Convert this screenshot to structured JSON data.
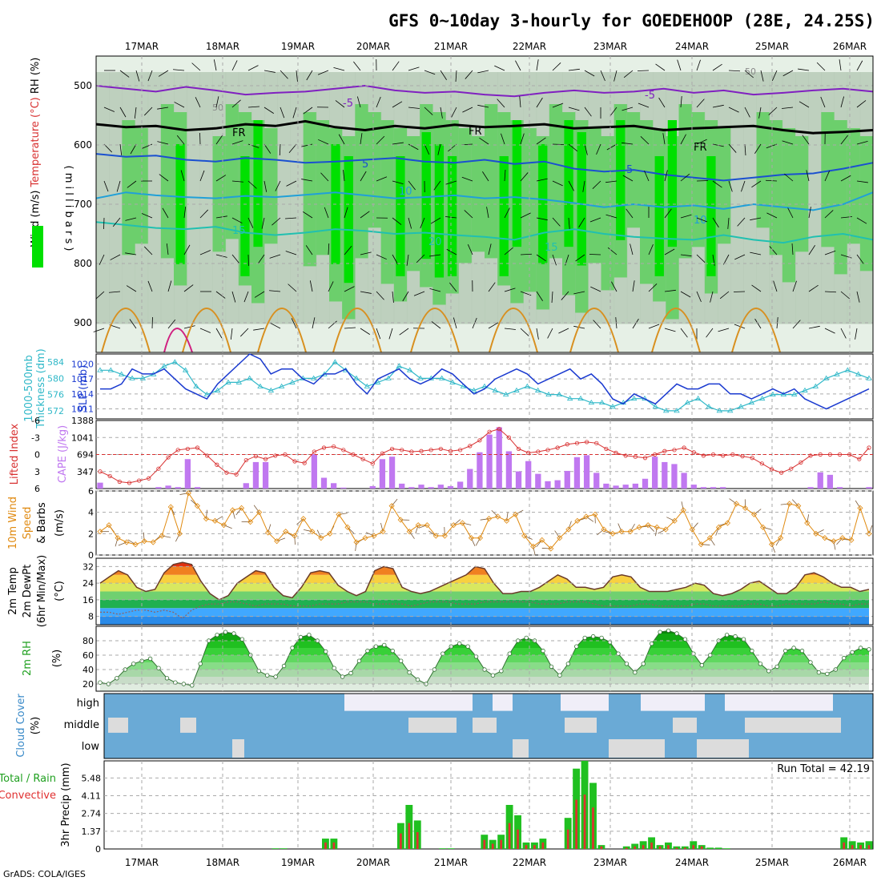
{
  "title": "GFS 0~10day 3-hourly for GOEDEHOOP (28E, 24.25S)",
  "footer": "GrADS: COLA/IGES",
  "dates": [
    "17MAR",
    "18MAR",
    "19MAR",
    "20MAR",
    "21MAR",
    "22MAR",
    "23MAR",
    "24MAR",
    "25MAR",
    "26MAR"
  ],
  "colors": {
    "rh_dark": "#00e000",
    "rh_mid": "#6ccf6c",
    "rh_light": "#b4c8b4",
    "cloud": "#6aaad6",
    "cloud_clear": "#f0eef8",
    "thick": "#2fb8c8",
    "slp": "#1a3ad0",
    "cape": "#c078f0",
    "lifted": "#d83030",
    "wind": "#e08a10",
    "rain_total": "#20c020",
    "rain_conv": "#e03030"
  },
  "chart_data": [
    {
      "type": "heatmap",
      "name": "upper_air",
      "ylabel_parts": [
        "Wind (m/s)",
        "Temperature (°C)",
        "RH (%)"
      ],
      "ylabel_unit": "( m i l l i b a r s )",
      "ylim": [
        450,
        950
      ],
      "yticks": [
        500,
        600,
        700,
        800,
        900
      ],
      "contour_labels": {
        "temp_minus5": "-5",
        "freezing": "FR",
        "temp5": "5",
        "temp10": "10",
        "temp15": "15",
        "temp20": "20",
        "rh50": "50"
      },
      "isotherms": {
        "freezing_line": [
          565,
          570,
          568,
          575,
          572,
          565,
          568,
          560,
          570,
          575,
          568,
          572,
          566,
          570,
          568,
          565,
          572,
          570,
          568,
          575,
          572,
          570,
          568,
          575,
          580,
          578,
          575
        ],
        "minus5_line": [
          500,
          505,
          510,
          502,
          508,
          515,
          512,
          510,
          505,
          500,
          508,
          512,
          510,
          515,
          518,
          512,
          508,
          512,
          510,
          505,
          512,
          508,
          515,
          512,
          508,
          505,
          510
        ],
        "plus5_line": [
          615,
          620,
          618,
          625,
          628,
          622,
          625,
          630,
          628,
          625,
          622,
          628,
          630,
          625,
          632,
          628,
          640,
          645,
          642,
          650,
          655,
          660,
          655,
          650,
          648,
          640,
          630
        ],
        "plus10_line": [
          690,
          680,
          685,
          688,
          690,
          686,
          688,
          684,
          680,
          685,
          690,
          688,
          685,
          690,
          688,
          692,
          698,
          705,
          700,
          705,
          702,
          708,
          700,
          705,
          710,
          700,
          680
        ],
        "plus15_line": [
          730,
          735,
          740,
          742,
          738,
          748,
          752,
          748,
          742,
          745,
          750,
          748,
          752,
          755,
          760,
          748,
          742,
          750,
          755,
          758,
          760,
          752,
          760,
          765,
          755,
          750,
          760
        ]
      }
    },
    {
      "type": "line",
      "name": "thickness_slp",
      "ylabel_parts": [
        "1000-500mb",
        "Thickness (dm)",
        "SLP (mb)"
      ],
      "thickness_ticks": [
        572,
        576,
        580,
        584
      ],
      "slp_ticks": [
        1011,
        1014,
        1017,
        1020
      ],
      "thickness_dm": [
        582,
        582,
        581,
        580,
        580,
        581,
        583,
        584,
        582,
        578,
        576,
        577,
        579,
        579,
        580,
        578,
        577,
        578,
        579,
        580,
        580,
        581,
        584,
        582,
        580,
        578,
        579,
        580,
        583,
        582,
        580,
        580,
        580,
        579,
        578,
        577,
        578,
        577,
        576,
        577,
        578,
        577,
        576,
        576,
        575,
        575,
        574,
        574,
        573,
        574,
        575,
        575,
        573,
        572,
        572,
        574,
        575,
        573,
        572,
        572,
        573,
        574,
        575,
        576,
        576,
        576,
        577,
        578,
        580,
        581,
        582,
        581,
        580
      ],
      "slp_mb": [
        1015,
        1015,
        1016,
        1019,
        1018,
        1018,
        1019,
        1017,
        1015,
        1014,
        1013,
        1016,
        1018,
        1020,
        1022,
        1021,
        1018,
        1019,
        1019,
        1017,
        1016,
        1018,
        1018,
        1019,
        1016,
        1014,
        1017,
        1018,
        1019,
        1017,
        1016,
        1017,
        1019,
        1018,
        1016,
        1014,
        1015,
        1017,
        1018,
        1019,
        1018,
        1016,
        1017,
        1018,
        1019,
        1017,
        1018,
        1016,
        1013,
        1012,
        1014,
        1013,
        1012,
        1014,
        1016,
        1015,
        1015,
        1016,
        1016,
        1014,
        1014,
        1013,
        1014,
        1015,
        1014,
        1015,
        1013,
        1012,
        1011,
        1012,
        1013,
        1014,
        1015
      ]
    },
    {
      "type": "bar",
      "name": "cape_li",
      "ylabel_parts": [
        "CAPE (J/kg)",
        "Lifted Index"
      ],
      "cape_ticks": [
        347,
        694,
        1041,
        1388
      ],
      "li_ticks": [
        "6",
        "3",
        "0",
        "-3",
        "-6"
      ],
      "cape_jkg": [
        120,
        0,
        0,
        0,
        0,
        0,
        30,
        60,
        30,
        600,
        30,
        0,
        0,
        0,
        0,
        110,
        540,
        540,
        0,
        0,
        0,
        0,
        700,
        220,
        110,
        20,
        0,
        0,
        50,
        600,
        650,
        100,
        30,
        80,
        30,
        80,
        50,
        140,
        400,
        740,
        1100,
        1250,
        760,
        350,
        560,
        300,
        150,
        170,
        360,
        640,
        680,
        320,
        100,
        60,
        80,
        100,
        200,
        650,
        540,
        500,
        320,
        80,
        30,
        30,
        30,
        0,
        0,
        0,
        0,
        0,
        0,
        0,
        0,
        30,
        330,
        280,
        30,
        0,
        0,
        30
      ],
      "lifted_index": [
        3,
        3.8,
        4.8,
        5.0,
        4.6,
        4.2,
        2.5,
        0.5,
        -0.8,
        -1,
        -1.2,
        0.2,
        1.8,
        3.2,
        3.5,
        1,
        0.3,
        0.8,
        0.2,
        0,
        1.2,
        1.5,
        -0.5,
        -1.2,
        -1.4,
        -0.8,
        0,
        0.8,
        1.6,
        -0.2,
        -1,
        -0.8,
        -0.5,
        -0.6,
        -0.8,
        -1,
        -0.6,
        -0.8,
        -1.5,
        -2.5,
        -4,
        -4.5,
        -3,
        -1,
        -0.3,
        -0.5,
        -0.8,
        -1.2,
        -1.8,
        -2,
        -2.2,
        -2,
        -1,
        -0.3,
        0.2,
        0.4,
        0.6,
        0,
        -0.6,
        -0.8,
        -1.2,
        -0.4,
        0.2,
        0,
        0.2,
        0,
        0.3,
        0.6,
        1.6,
        2.6,
        3.2,
        2.5,
        1.4,
        0.2,
        0,
        0,
        0,
        0,
        0.8,
        -1.2
      ]
    },
    {
      "type": "line",
      "name": "wind",
      "ylabel_parts": [
        "10m Wind",
        "Speed",
        "& Barbs",
        "(m/s)"
      ],
      "ylim": [
        0,
        6
      ],
      "yticks": [
        0,
        2,
        4,
        6
      ],
      "speed_ms": [
        2.2,
        2.8,
        1.6,
        1.2,
        1.0,
        1.3,
        1.2,
        1.8,
        4.5,
        2.0,
        5.8,
        4.6,
        3.4,
        3.2,
        2.8,
        4.2,
        4.4,
        3.1,
        4.0,
        2.1,
        1.3,
        2.2,
        1.8,
        3.4,
        2.2,
        1.6,
        2.0,
        3.8,
        2.6,
        1.2,
        1.6,
        1.8,
        2.2,
        4.6,
        3.3,
        2.2,
        2.8,
        2.8,
        1.8,
        1.8,
        2.8,
        3.0,
        1.6,
        1.6,
        3.4,
        3.6,
        3.2,
        3.8,
        1.8,
        0.8,
        1.4,
        0.6,
        1.6,
        2.4,
        3.2,
        3.6,
        3.8,
        2.4,
        2.0,
        2.2,
        2.2,
        2.6,
        2.8,
        2.6,
        2.4,
        3.2,
        4.2,
        2.4,
        1.0,
        1.6,
        2.6,
        3.0,
        4.8,
        4.4,
        3.8,
        2.6,
        1.0,
        1.6,
        4.8,
        4.6,
        3.0,
        2.0,
        1.6,
        1.3,
        1.6,
        1.4,
        4.4,
        2.0
      ]
    },
    {
      "type": "area",
      "name": "temp",
      "ylabel_parts": [
        "2m Temp",
        "2m DewPt",
        "(6hr Min/Max)",
        "(°C)"
      ],
      "ylim": [
        4,
        36
      ],
      "yticks": [
        8,
        16,
        24,
        32
      ],
      "temp_c": [
        24,
        27,
        30,
        28,
        22,
        20,
        21,
        29,
        33,
        34,
        33,
        25,
        19,
        16,
        18,
        24,
        27,
        30,
        29,
        22,
        18,
        17,
        22,
        29,
        30,
        29,
        23,
        20,
        18,
        20,
        30,
        32,
        31,
        22,
        20,
        19,
        20,
        22,
        24,
        26,
        28,
        32,
        31,
        24,
        19,
        19,
        20,
        20,
        22,
        25,
        28,
        26,
        22,
        22,
        21,
        22,
        27,
        28,
        27,
        22,
        20,
        20,
        20,
        21,
        22,
        24,
        23,
        19,
        18,
        19,
        21,
        24,
        25,
        22,
        19,
        19,
        22,
        28,
        29,
        27,
        24,
        22,
        22,
        20,
        21
      ],
      "dewpoint_c": [
        10,
        10,
        9,
        10,
        11,
        11,
        10,
        11,
        10,
        7,
        11,
        13,
        14,
        14,
        15,
        15,
        14,
        13,
        14,
        14,
        14,
        13,
        13,
        13,
        14,
        14,
        14,
        15,
        15,
        15,
        14,
        14,
        14,
        14,
        13,
        14,
        15,
        15,
        15,
        14,
        14,
        14,
        15,
        15,
        15,
        15,
        15,
        15,
        14,
        14,
        14,
        15,
        15,
        15,
        14,
        13,
        13,
        13,
        13,
        14,
        14,
        13,
        13,
        13,
        13,
        14,
        14,
        13,
        13,
        13,
        13,
        14,
        14,
        13,
        13,
        14,
        14,
        14,
        14,
        15,
        14,
        14,
        13,
        14,
        14
      ]
    },
    {
      "type": "area",
      "name": "rh",
      "ylabel_parts": [
        "2m RH",
        "(%)"
      ],
      "ylim": [
        10,
        100
      ],
      "yticks": [
        20,
        40,
        60,
        80
      ],
      "rh_pct": [
        22,
        20,
        28,
        40,
        48,
        52,
        55,
        42,
        28,
        22,
        20,
        18,
        48,
        80,
        88,
        92,
        90,
        82,
        60,
        38,
        32,
        30,
        45,
        70,
        85,
        88,
        80,
        65,
        42,
        30,
        35,
        52,
        66,
        72,
        74,
        66,
        52,
        36,
        26,
        20,
        40,
        62,
        72,
        76,
        72,
        58,
        40,
        32,
        38,
        62,
        80,
        84,
        80,
        66,
        44,
        32,
        48,
        72,
        84,
        86,
        84,
        78,
        62,
        48,
        36,
        48,
        76,
        92,
        94,
        90,
        82,
        62,
        46,
        60,
        80,
        88,
        86,
        82,
        66,
        48,
        38,
        44,
        66,
        70,
        66,
        50,
        36,
        34,
        40,
        56,
        64,
        70,
        68
      ]
    },
    {
      "type": "heatmap",
      "name": "cloud",
      "ylabel_parts": [
        "Cloud Cover",
        "(%)"
      ],
      "levels": [
        "high",
        "middle",
        "low"
      ]
    },
    {
      "type": "bar",
      "name": "precip",
      "ylabel_parts": [
        "3hr Precip (mm)",
        "Total / Rain",
        "Convective"
      ],
      "ylim": [
        0,
        6.8
      ],
      "yticks": [
        "0",
        "1.37",
        "2.74",
        "4.11",
        "5.48"
      ],
      "run_total_label": "Run Total = 42.19",
      "total_mm": [
        0,
        0,
        0,
        0,
        0,
        0,
        0,
        0,
        0,
        0,
        0,
        0,
        0,
        0,
        0,
        0,
        0,
        0,
        0,
        0,
        0.05,
        0.05,
        0,
        0,
        0,
        0,
        0.8,
        0.8,
        0,
        0,
        0,
        0,
        0,
        0,
        0,
        2.0,
        3.4,
        2.2,
        0,
        0,
        0.05,
        0.05,
        0,
        0,
        0,
        1.1,
        0.7,
        1.1,
        3.4,
        2.6,
        0.5,
        0.5,
        0.8,
        0,
        0,
        2.4,
        6.2,
        6.8,
        5.1,
        0.3,
        0,
        0,
        0.2,
        0.4,
        0.6,
        0.9,
        0.3,
        0.5,
        0.2,
        0.2,
        0.6,
        0.3,
        0.1,
        0.1,
        0.05,
        0,
        0,
        0,
        0,
        0,
        0,
        0,
        0,
        0,
        0,
        0,
        0,
        0,
        0.9,
        0.6,
        0.5,
        0.6
      ],
      "conv_mm": [
        0,
        0,
        0,
        0,
        0,
        0,
        0,
        0,
        0,
        0,
        0,
        0,
        0,
        0,
        0,
        0,
        0,
        0,
        0,
        0,
        0,
        0,
        0,
        0,
        0,
        0,
        0.5,
        0.5,
        0,
        0,
        0,
        0,
        0,
        0,
        0,
        1.2,
        2.0,
        1.3,
        0,
        0,
        0,
        0,
        0,
        0,
        0,
        0.7,
        0.4,
        0.7,
        2.0,
        1.5,
        0.3,
        0.3,
        0.5,
        0,
        0,
        1.5,
        3.8,
        4.2,
        3.2,
        0.2,
        0,
        0,
        0.1,
        0.2,
        0.3,
        0.5,
        0.2,
        0.3,
        0.1,
        0.1,
        0.3,
        0.2,
        0,
        0,
        0,
        0,
        0,
        0,
        0,
        0,
        0,
        0,
        0,
        0,
        0,
        0,
        0,
        0,
        0.5,
        0.3,
        0.3,
        0.3
      ]
    }
  ]
}
